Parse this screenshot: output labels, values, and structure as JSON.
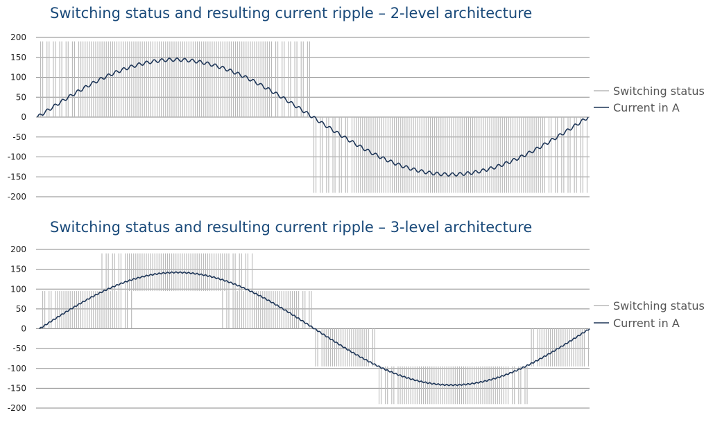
{
  "colors": {
    "title": "#1a4a7a",
    "switching": "#b8b8b8",
    "current": "#1d3557",
    "grid": "#8a8a8a",
    "text": "#222222",
    "legend_text": "#555555"
  },
  "chart_data": [
    {
      "type": "line",
      "title": "Switching status and resulting current ripple – 2-level architecture",
      "xlabel": "",
      "ylabel": "",
      "ylim": [
        -200,
        200
      ],
      "yticks": [
        "200",
        "150",
        "100",
        "50",
        "0",
        "-50",
        "-100",
        "-150",
        "-200"
      ],
      "grid": true,
      "legend_position": "right",
      "series": [
        {
          "name": "Switching status",
          "levels": [
            0,
            190,
            -190
          ],
          "segments": [
            {
              "x_start": 0.0,
              "x_end": 0.5,
              "low": 0,
              "high": 190
            },
            {
              "x_start": 0.5,
              "x_end": 1.0,
              "low": -190,
              "high": 0
            }
          ]
        },
        {
          "name": "Current in A",
          "amplitude": 144,
          "ripple_amplitude": 4,
          "x": [
            0,
            0.125,
            0.25,
            0.375,
            0.5,
            0.625,
            0.75,
            0.875,
            1.0
          ],
          "y": [
            0,
            102,
            144,
            102,
            0,
            -102,
            -144,
            -102,
            0
          ]
        }
      ]
    },
    {
      "type": "line",
      "title": "Switching status and resulting current ripple – 3-level architecture",
      "xlabel": "",
      "ylabel": "",
      "ylim": [
        -200,
        200
      ],
      "yticks": [
        "200",
        "150",
        "100",
        "50",
        "0",
        "-50",
        "-100",
        "-150",
        "-200"
      ],
      "grid": true,
      "legend_position": "right",
      "series": [
        {
          "name": "Switching status",
          "levels": [
            0,
            95,
            190,
            -95,
            -190
          ],
          "segments": [
            {
              "x_start": 0.0,
              "x_end": 0.17,
              "low": 0,
              "high": 95
            },
            {
              "x_start": 0.11,
              "x_end": 0.39,
              "low": 95,
              "high": 190
            },
            {
              "x_start": 0.33,
              "x_end": 0.5,
              "low": 0,
              "high": 95
            },
            {
              "x_start": 0.5,
              "x_end": 0.61,
              "low": -95,
              "high": 0
            },
            {
              "x_start": 0.61,
              "x_end": 0.89,
              "low": -190,
              "high": -95
            },
            {
              "x_start": 0.89,
              "x_end": 1.0,
              "low": -95,
              "high": 0
            }
          ]
        },
        {
          "name": "Current in A",
          "amplitude": 142,
          "ripple_amplitude": 1.5,
          "x": [
            0,
            0.125,
            0.25,
            0.375,
            0.5,
            0.625,
            0.75,
            0.875,
            1.0
          ],
          "y": [
            0,
            100,
            142,
            100,
            0,
            -100,
            -142,
            -100,
            0
          ]
        }
      ]
    }
  ]
}
